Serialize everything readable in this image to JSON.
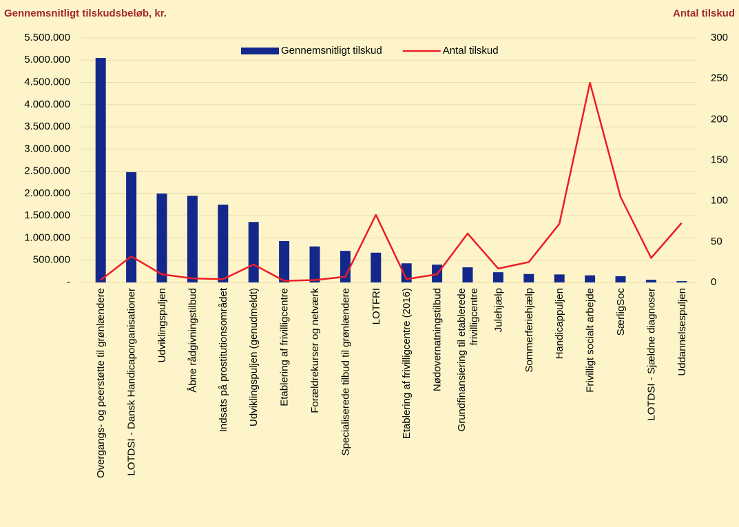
{
  "chart_data": {
    "type": "bar_line",
    "y_title": "Gennemsnitligt tilskudsbeløb, kr.",
    "y2_title": "Antal tilskud",
    "categories": [
      "Overgangs- og peerstøtte til grønlændere",
      "LOTDSI - Dansk Handicaporganisationer",
      "Udviklingspuljen",
      "Åbne rådgivningstilbud",
      "Indsats på prostitutionsområdet",
      "Udviklingspuljen (genudmeldt)",
      "Etablering af frivilligcentre",
      "Forældrekurser og netværk",
      "Specialiserede tilbud til grønlændere",
      "LOTFRI",
      "Etablering af frivilligcentre (2016)",
      "Nødovernatningstilbud",
      "Grundfinansiering til etablerede\nfrivilligcentre",
      "Julehjælp",
      "Sommerferiehjælp",
      "Handicappuljen",
      "Frivilligt socialt arbejde",
      "SærligSoc",
      "LOTDSI - Sjældne diagnoser",
      "Uddannelsespuljen"
    ],
    "series": [
      {
        "name": "Gennemsnitligt tilskud",
        "color": "#14288c",
        "kind": "bar",
        "values": [
          5050000,
          2480000,
          2000000,
          1950000,
          1750000,
          1360000,
          930000,
          810000,
          710000,
          670000,
          430000,
          400000,
          340000,
          230000,
          190000,
          180000,
          160000,
          140000,
          60000,
          30000
        ]
      },
      {
        "name": "Antal tilskud",
        "color": "#ee1c25",
        "kind": "line",
        "axis": "y2",
        "values": [
          3,
          32,
          10,
          5,
          4,
          22,
          2,
          3,
          7,
          83,
          4,
          10,
          60,
          17,
          25,
          72,
          245,
          105,
          30,
          73
        ]
      }
    ],
    "ylim": [
      0,
      5500000
    ],
    "yticks": [
      {
        "value": 0,
        "label": "-"
      },
      {
        "value": 500000,
        "label": "500.000"
      },
      {
        "value": 1000000,
        "label": "1.000.000"
      },
      {
        "value": 1500000,
        "label": "1.500.000"
      },
      {
        "value": 2000000,
        "label": "2.000.000"
      },
      {
        "value": 2500000,
        "label": "2.500.000"
      },
      {
        "value": 3000000,
        "label": "3.000.000"
      },
      {
        "value": 3500000,
        "label": "3.500.000"
      },
      {
        "value": 4000000,
        "label": "4.000.000"
      },
      {
        "value": 4500000,
        "label": "4.500.000"
      },
      {
        "value": 5000000,
        "label": "5.000.000"
      },
      {
        "value": 5500000,
        "label": "5.500.000"
      }
    ],
    "y2lim": [
      0,
      300
    ],
    "y2ticks": [
      0,
      50,
      100,
      150,
      200,
      250,
      300
    ],
    "grid": true,
    "legend": "top"
  }
}
